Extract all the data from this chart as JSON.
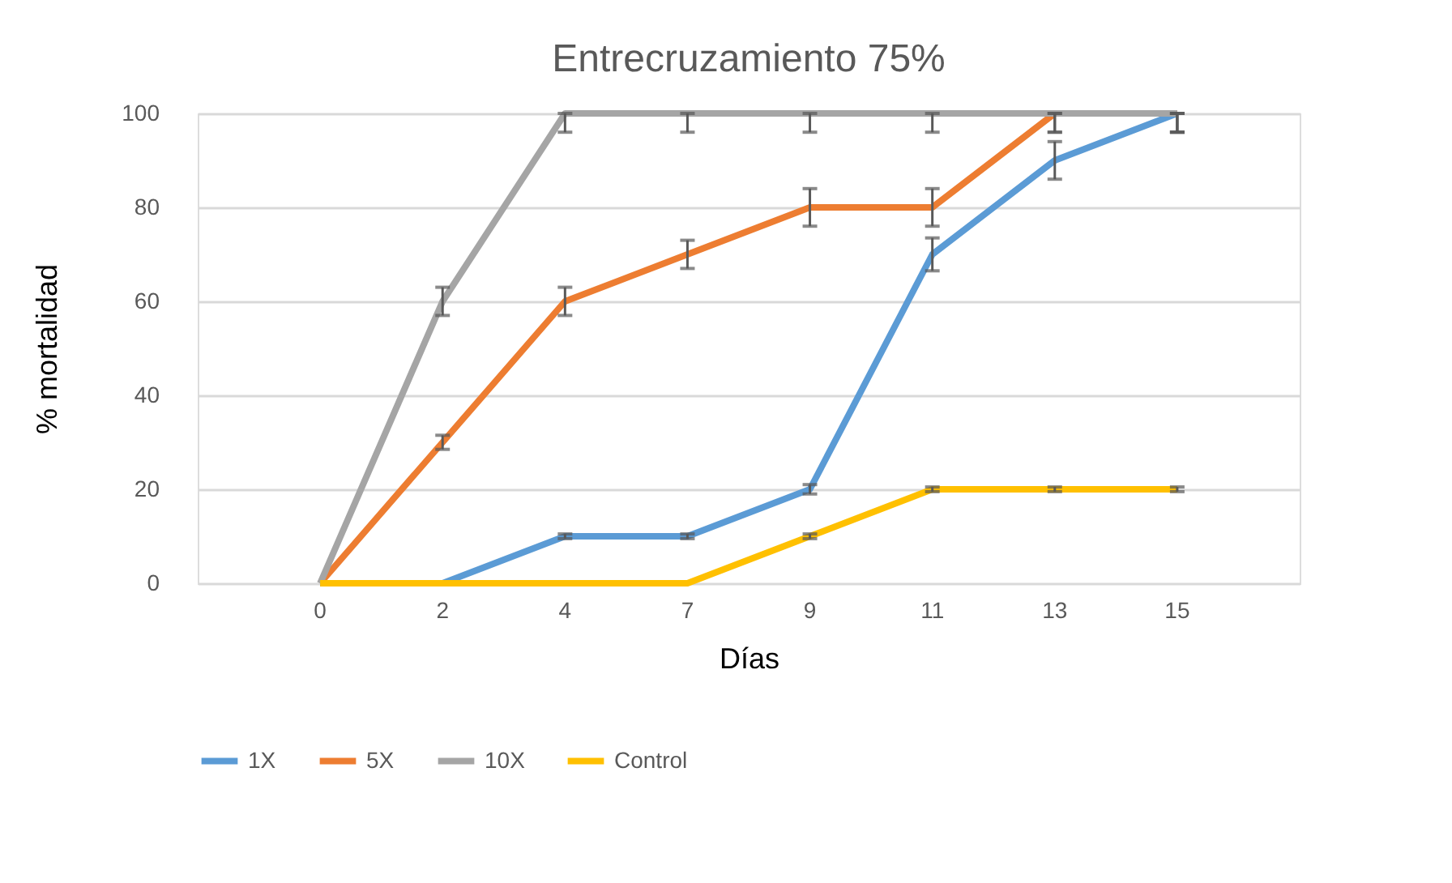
{
  "chart_data": {
    "type": "line",
    "title": "Entrecruzamiento 75%",
    "xlabel": "Días",
    "ylabel": "% mortalidad",
    "categories": [
      "0",
      "2",
      "4",
      "7",
      "9",
      "11",
      "13",
      "15"
    ],
    "series": [
      {
        "name": "1X",
        "color": "#5b9bd5",
        "values": [
          0,
          0,
          10,
          10,
          20,
          70,
          90,
          100
        ],
        "errors": [
          null,
          null,
          0.5,
          0.5,
          1,
          3.5,
          4,
          [
            96,
            100
          ]
        ]
      },
      {
        "name": "5X",
        "color": "#ed7d31",
        "values": [
          0,
          30,
          60,
          70,
          80,
          80,
          100,
          100
        ],
        "errors": [
          null,
          1.5,
          3,
          3,
          4,
          4,
          [
            96,
            100
          ],
          [
            96,
            100
          ]
        ]
      },
      {
        "name": "10X",
        "color": "#a5a5a5",
        "values": [
          0,
          60,
          100,
          100,
          100,
          100,
          100,
          100
        ],
        "errors": [
          null,
          3,
          [
            96,
            100
          ],
          [
            96,
            100
          ],
          [
            96,
            100
          ],
          [
            96,
            100
          ],
          [
            96,
            100
          ],
          [
            96,
            100
          ]
        ]
      },
      {
        "name": "Control",
        "color": "#ffc000",
        "values": [
          0,
          0,
          0,
          0,
          10,
          20,
          20,
          20
        ],
        "errors": [
          null,
          null,
          null,
          null,
          0.5,
          0.5,
          0.5,
          0.5
        ]
      }
    ],
    "ylim": [
      0,
      100
    ],
    "yticks": [
      0,
      20,
      40,
      60,
      80,
      100
    ],
    "grid": "y",
    "legend": "bottom",
    "marker": "none",
    "line_style": "solid"
  }
}
